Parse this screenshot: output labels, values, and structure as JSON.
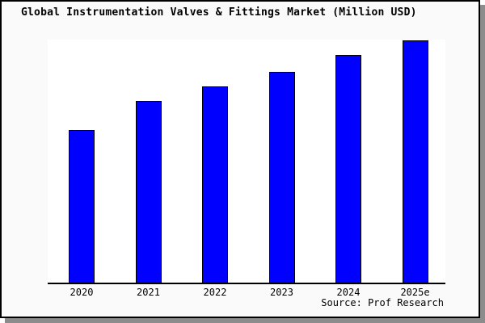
{
  "title": "Global Instrumentation Valves & Fittings Market (Million USD)",
  "source": "Source: Prof Research",
  "colors": {
    "bar_fill": "#0000ff",
    "bar_border": "#000000",
    "figure_bg": "#fafafa",
    "plot_bg": "#ffffff",
    "axis": "#000000",
    "frame_border": "#000000",
    "shadow": "#8c8c8c"
  },
  "chart_data": {
    "type": "bar",
    "title": "Global Instrumentation Valves & Fittings Market (Million USD)",
    "categories": [
      "2020",
      "2021",
      "2022",
      "2023",
      "2024",
      "2025e"
    ],
    "values": [
      63,
      75,
      81,
      87,
      94,
      100
    ],
    "value_note": "Chart shows no y-axis, gridlines or data labels; values are relative bar heights with 2025e = 100",
    "xlabel": "",
    "ylabel": "",
    "ylim": [
      0,
      100
    ],
    "grid": false,
    "legend": false,
    "bar_color": "#0000ff",
    "source_annotation": "Source: Prof Research"
  }
}
